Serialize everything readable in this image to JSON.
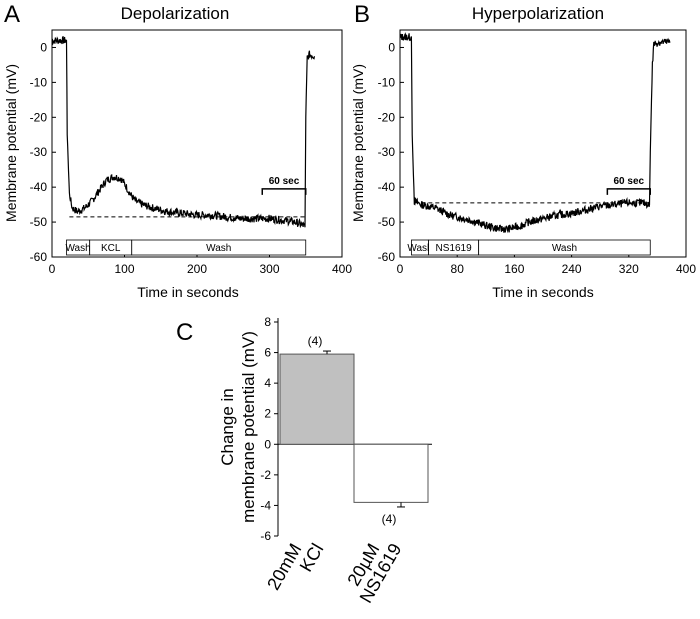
{
  "chart_data": [
    {
      "panel": "A",
      "type": "line",
      "title": "Depolarization",
      "xlabel": "Time in seconds",
      "ylabel": "Membrane potential (mV)",
      "xlim": [
        0,
        400
      ],
      "ylim": [
        -60,
        5
      ],
      "xticks": [
        0,
        100,
        200,
        300,
        400
      ],
      "yticks": [
        0,
        -10,
        -20,
        -30,
        -40,
        -50,
        -60
      ],
      "series": [
        {
          "name": "membrane potential",
          "x": [
            0,
            10,
            20,
            21,
            24,
            28,
            35,
            45,
            55,
            65,
            75,
            85,
            95,
            100,
            108,
            115,
            125,
            140,
            160,
            180,
            200,
            220,
            240,
            260,
            280,
            300,
            320,
            335,
            342,
            347,
            349,
            350,
            352,
            355,
            362
          ],
          "y": [
            2,
            2,
            2,
            -25,
            -42,
            -46,
            -47,
            -46,
            -44,
            -41,
            -38,
            -37,
            -37.5,
            -39,
            -42,
            -44,
            -45,
            -46,
            -47,
            -47.5,
            -48,
            -48,
            -48.5,
            -49,
            -49,
            -49,
            -49.5,
            -50,
            -50.5,
            -51,
            -51.5,
            -20,
            -3,
            -2,
            -2.5
          ]
        }
      ],
      "baseline_dashed": {
        "x": [
          24,
          350
        ],
        "y": -48.5
      },
      "scale_bar": {
        "label": "60 sec",
        "x": [
          290,
          350
        ],
        "y": -40.5
      },
      "timeline": [
        {
          "label": "Wash",
          "x": [
            20,
            52
          ]
        },
        {
          "label": "KCL",
          "x": [
            52,
            110
          ]
        },
        {
          "label": "Wash",
          "x": [
            110,
            350
          ]
        }
      ]
    },
    {
      "panel": "B",
      "type": "line",
      "title": "Hyperpolarization",
      "xlabel": "Time in seconds",
      "ylabel": "Membrane potential (mV)",
      "xlim": [
        0,
        400
      ],
      "ylim": [
        -60,
        5
      ],
      "xticks": [
        0,
        80,
        160,
        240,
        320,
        400
      ],
      "yticks": [
        0,
        -10,
        -20,
        -30,
        -40,
        -50,
        -60
      ],
      "series": [
        {
          "name": "membrane potential",
          "x": [
            0,
            8,
            16,
            17,
            20,
            30,
            40,
            50,
            60,
            70,
            80,
            100,
            120,
            140,
            150,
            160,
            170,
            180,
            200,
            220,
            240,
            260,
            280,
            300,
            320,
            340,
            349,
            350,
            353,
            355,
            362,
            378
          ],
          "y": [
            3,
            3,
            3,
            -25,
            -44,
            -45,
            -45.5,
            -46,
            -47,
            -48,
            -48.5,
            -49.5,
            -51,
            -52,
            -52,
            -51.5,
            -51,
            -50,
            -49,
            -48,
            -47.5,
            -46.5,
            -45.5,
            -45,
            -44.5,
            -44.5,
            -45,
            -30,
            -5,
            1,
            1.5,
            1.5
          ]
        }
      ],
      "baseline_dashed": {
        "x": [
          20,
          350
        ],
        "y": -44.5
      },
      "scale_bar": {
        "label": "60 sec",
        "x": [
          290,
          350
        ],
        "y": -40.5
      },
      "timeline": [
        {
          "label": "Wash",
          "x": [
            16,
            40
          ]
        },
        {
          "label": "NS1619",
          "x": [
            40,
            110
          ]
        },
        {
          "label": "Wash",
          "x": [
            110,
            350
          ]
        }
      ]
    },
    {
      "panel": "C",
      "type": "bar",
      "ylabel": "Change in membrane potential (mV)",
      "ylim": [
        -6,
        8
      ],
      "yticks": [
        8,
        6,
        4,
        2,
        0,
        -2,
        -4,
        -6
      ],
      "categories": [
        "20mM KCl",
        "20µM NS1619"
      ],
      "category_lines": [
        [
          "20mM",
          "KCl"
        ],
        [
          "20µM",
          "NS1619"
        ]
      ],
      "values": [
        5.9,
        -3.8
      ],
      "errors": [
        0.2,
        0.3
      ],
      "n_labels": [
        "(4)",
        "(4)"
      ],
      "colors": [
        "#c0c0c0",
        "#ffffff"
      ]
    }
  ],
  "labels": {
    "ylabel_lines": [
      "Change in",
      "membrane potential (mV)"
    ]
  }
}
